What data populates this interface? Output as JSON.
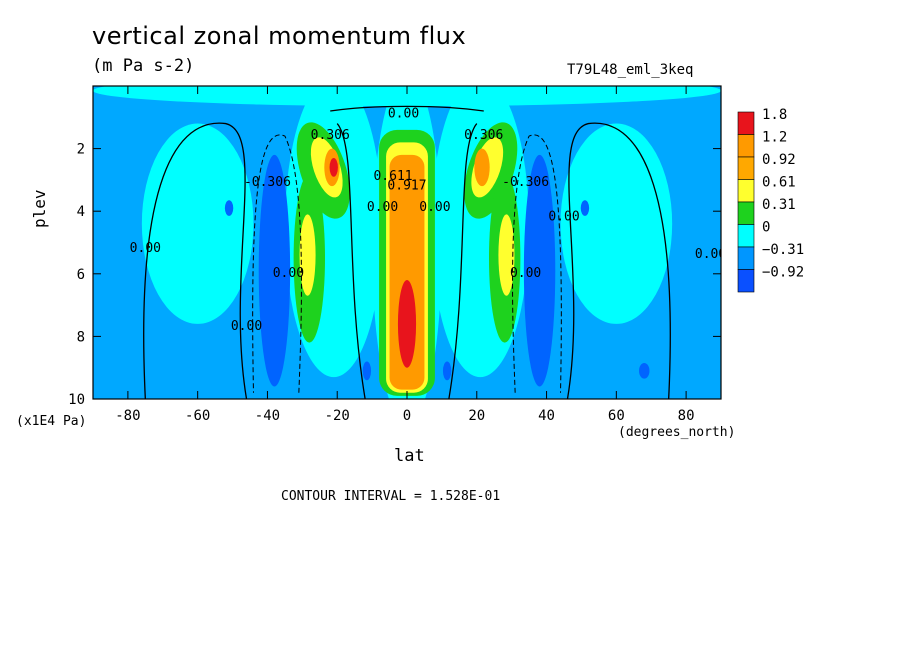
{
  "chart_data": {
    "type": "heatmap",
    "title": "vertical zonal momentum flux",
    "units": "(m Pa s-2)",
    "run_label": "T79L48_eml_3keq",
    "xlabel": "lat",
    "xunit": "(degrees_north)",
    "ylabel": "plev",
    "yunit": "(x1E4 Pa)",
    "xlim": [
      -90,
      90
    ],
    "ylim": [
      10,
      0
    ],
    "xticks": [
      "-80",
      "-60",
      "-40",
      "-20",
      "0",
      "20",
      "40",
      "60",
      "80"
    ],
    "xtick_values": [
      -80,
      -60,
      -40,
      -20,
      0,
      20,
      40,
      60,
      80
    ],
    "yticks": [
      "2",
      "4",
      "6",
      "8",
      "10"
    ],
    "ytick_values": [
      2,
      4,
      6,
      8,
      10
    ],
    "contour_interval_text": "CONTOUR INTERVAL = 1.528E-01",
    "legend": {
      "placement": "right",
      "labels": [
        "1.8",
        "1.2",
        "0.92",
        "0.61",
        "0.31",
        "0",
        "−0.31",
        "−0.92"
      ],
      "colors": [
        "#e8141c",
        "#ff9a00",
        "#ffa800",
        "#ffff2e",
        "#1ed21e",
        "#00ffff",
        "#0096ff",
        "#0a50ff"
      ]
    },
    "fill_colors": {
      "lt_neg092": "#0a50ff",
      "neg092_to_neg031": "#0064ff",
      "neg031_to_0": "#00a8ff",
      "zero_to_031": "#00ffff",
      "p031_to_061": "#1ed21e",
      "p061_to_092": "#ffff2e",
      "p092_to_12": "#ff9a00",
      "gt_12": "#e8141c"
    },
    "contour_labels": [
      {
        "text": "0.00",
        "lat": -1,
        "plev": 1.0
      },
      {
        "text": "0.306",
        "lat": -22,
        "plev": 1.7
      },
      {
        "text": "0.306",
        "lat": 22,
        "plev": 1.7
      },
      {
        "text": "-0.306",
        "lat": -40,
        "plev": 3.2
      },
      {
        "text": "-0.306",
        "lat": 34,
        "plev": 3.2
      },
      {
        "text": "0.00",
        "lat": -75,
        "plev": 5.3
      },
      {
        "text": "0.00",
        "lat": 45,
        "plev": 4.3
      },
      {
        "text": "0.00",
        "lat": 87,
        "plev": 5.5
      },
      {
        "text": "0.00",
        "lat": -46,
        "plev": 7.8
      },
      {
        "text": "0.00",
        "lat": -34,
        "plev": 6.1
      },
      {
        "text": "0.00",
        "lat": 34,
        "plev": 6.1
      },
      {
        "text": "0.00",
        "lat": -7,
        "plev": 4.0
      },
      {
        "text": "0.00",
        "lat": 8,
        "plev": 4.0
      },
      {
        "text": "0.611",
        "lat": -4,
        "plev": 3.0
      },
      {
        "text": "0.917",
        "lat": 0,
        "plev": 3.3
      }
    ],
    "features": [
      {
        "name": "equatorial maximum",
        "lat": 0,
        "plev": 8.0,
        "value_band": "gt_12"
      },
      {
        "name": "SH subtropical maximum",
        "lat": -21,
        "plev": 2.6,
        "value_band": "gt_12"
      },
      {
        "name": "NH subtropical maximum",
        "lat": 22,
        "plev": 2.6,
        "value_band": "p092_to_12"
      },
      {
        "name": "SH midlatitude minimum",
        "lat": -38,
        "plev": 6.0,
        "value_band": "neg092_to_neg031"
      },
      {
        "name": "NH midlatitude minimum",
        "lat": 38,
        "plev": 6.0,
        "value_band": "neg092_to_neg031"
      }
    ]
  }
}
